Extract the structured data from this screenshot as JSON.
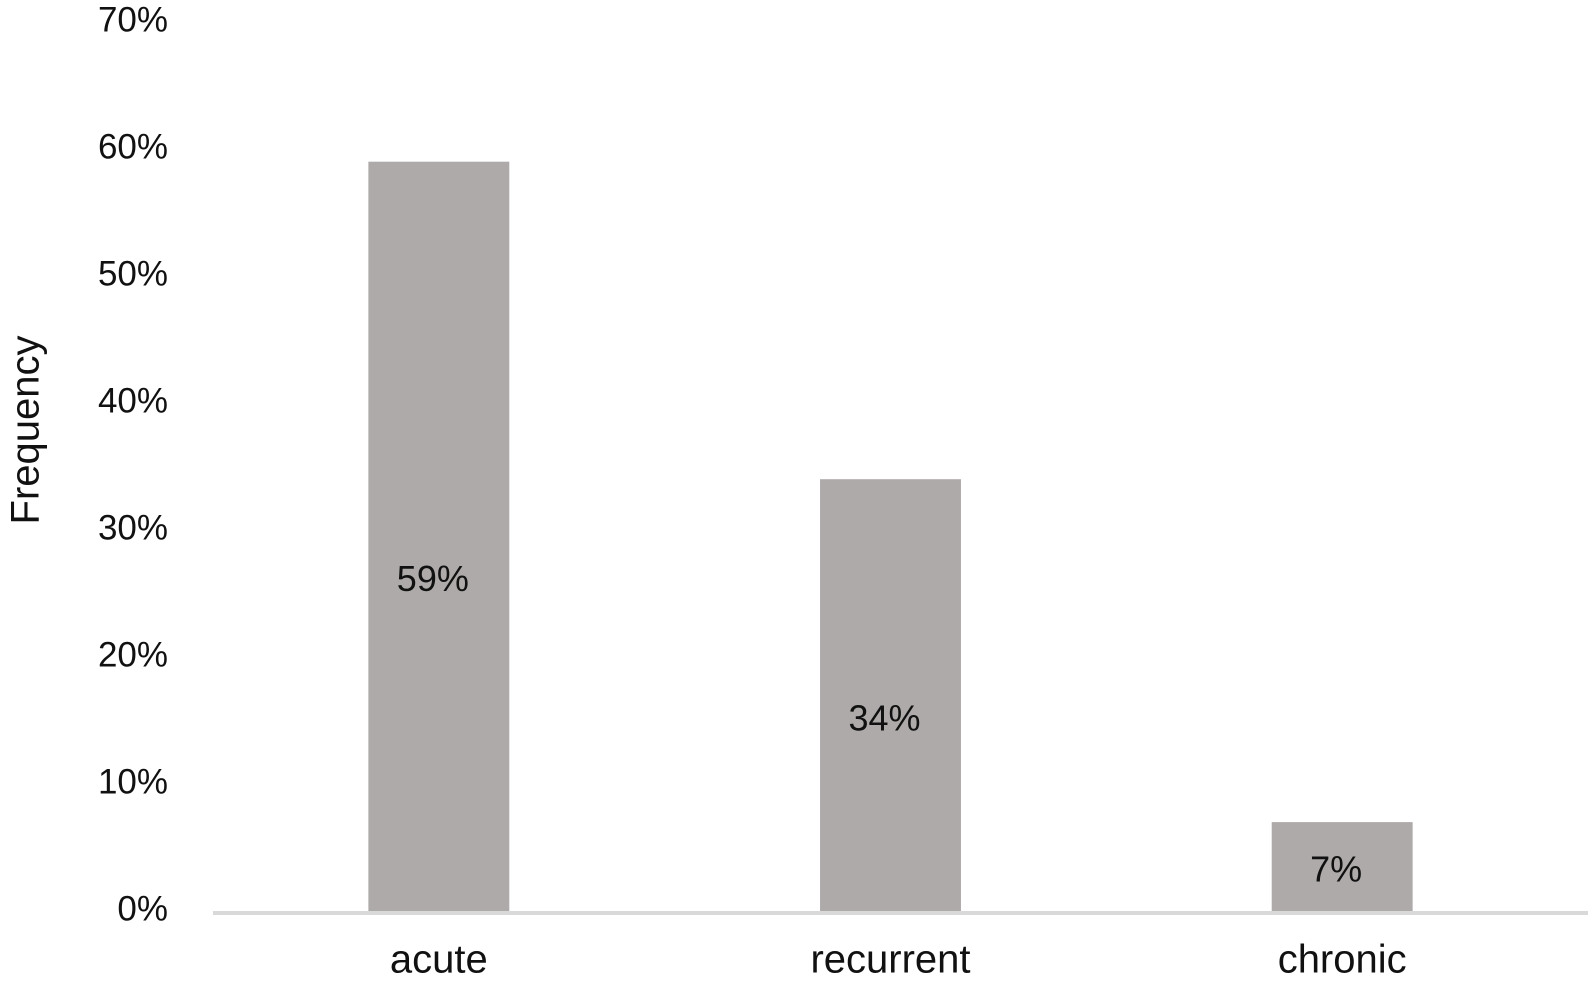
{
  "chart_data": {
    "type": "bar",
    "y_label": "Frequency",
    "categories": [
      "acute",
      "recurrent",
      "chronic"
    ],
    "values": [
      59,
      34,
      7
    ],
    "value_labels": [
      "59%",
      "34%",
      "7%"
    ],
    "color": "#aeaaa9",
    "ylim": [
      0,
      70
    ],
    "yticks": [
      {
        "value": 0,
        "label": "0%"
      },
      {
        "value": 10,
        "label": "10%"
      },
      {
        "value": 20,
        "label": "20%"
      },
      {
        "value": 30,
        "label": "30%"
      },
      {
        "value": 40,
        "label": "40%"
      },
      {
        "value": 50,
        "label": "50%"
      },
      {
        "value": 60,
        "label": "60%"
      },
      {
        "value": 70,
        "label": "70%"
      }
    ],
    "grid": false
  }
}
